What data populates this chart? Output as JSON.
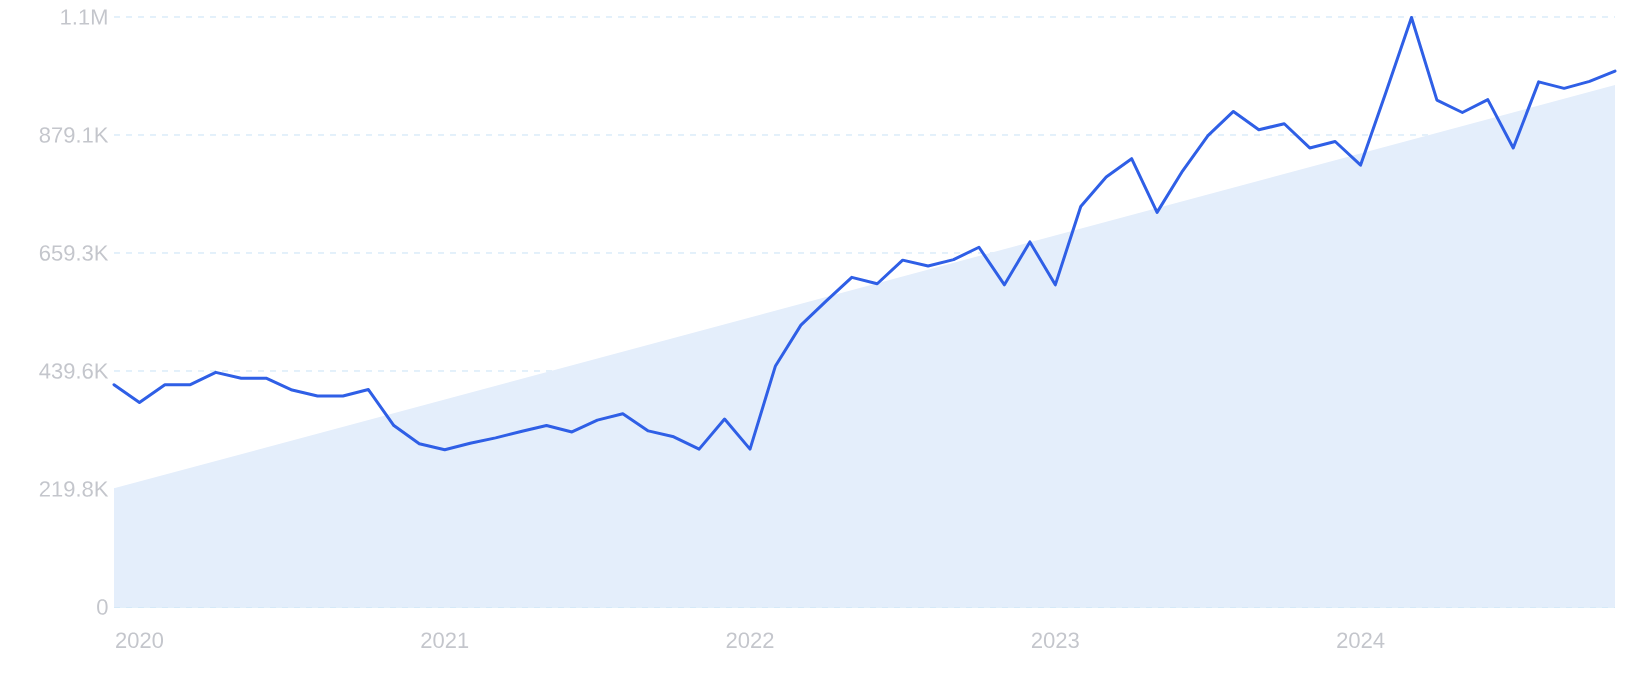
{
  "chart_data": {
    "type": "line",
    "x": [
      "2019-12",
      "2020-01",
      "2020-02",
      "2020-03",
      "2020-04",
      "2020-05",
      "2020-06",
      "2020-07",
      "2020-08",
      "2020-09",
      "2020-10",
      "2020-11",
      "2020-12",
      "2021-01",
      "2021-02",
      "2021-03",
      "2021-04",
      "2021-05",
      "2021-06",
      "2021-07",
      "2021-08",
      "2021-09",
      "2021-10",
      "2021-11",
      "2021-12",
      "2022-01",
      "2022-02",
      "2022-03",
      "2022-04",
      "2022-05",
      "2022-06",
      "2022-07",
      "2022-08",
      "2022-09",
      "2022-10",
      "2022-11",
      "2022-12",
      "2023-01",
      "2023-02",
      "2023-03",
      "2023-04",
      "2023-05",
      "2023-06",
      "2023-07",
      "2023-08",
      "2023-09",
      "2023-10",
      "2023-11",
      "2023-12",
      "2024-01",
      "2024-02",
      "2024-03",
      "2024-04",
      "2024-05",
      "2024-06",
      "2024-07",
      "2024-08",
      "2024-09",
      "2024-10",
      "2024-11"
    ],
    "series": [
      {
        "type": "area",
        "color": "#e4eefb",
        "x": [
          "2019-12",
          "2024-11"
        ],
        "values": [
          221000,
          972000
        ]
      },
      {
        "color": "#2f5fe6",
        "values": [
          414000,
          381000,
          414000,
          414000,
          437000,
          426000,
          426000,
          404000,
          393000,
          393000,
          405000,
          338000,
          304000,
          293000,
          305000,
          315000,
          327000,
          338000,
          326000,
          348000,
          360000,
          328000,
          317000,
          294000,
          350000,
          294000,
          449000,
          525000,
          570000,
          614000,
          602000,
          646000,
          635000,
          647000,
          670000,
          600000,
          680000,
          600000,
          746000,
          801000,
          835000,
          735000,
          812000,
          878000,
          923000,
          889000,
          900000,
          855000,
          867000,
          823000,
          959000,
          1098000,
          944000,
          921000,
          945000,
          855000,
          978000,
          966000,
          979000,
          998000
        ]
      }
    ],
    "xlim": [
      "2019-12",
      "2024-11"
    ],
    "xticks": [
      {
        "value": "2020",
        "label": "2020"
      },
      {
        "value": "2021",
        "label": "2021"
      },
      {
        "value": "2022",
        "label": "2022"
      },
      {
        "value": "2023",
        "label": "2023"
      },
      {
        "value": "2024",
        "label": "2024"
      }
    ],
    "ylim": [
      0,
      1098875
    ],
    "yticks": [
      0,
      {
        "value": 219775,
        "label": "219.8K"
      },
      {
        "value": 439550,
        "label": "439.6K"
      },
      {
        "value": 659325,
        "label": "659.3K"
      },
      {
        "value": 879100,
        "label": "879.1K"
      },
      {
        "value": 1098875,
        "label": "1.1M"
      }
    ],
    "grid": "y"
  }
}
